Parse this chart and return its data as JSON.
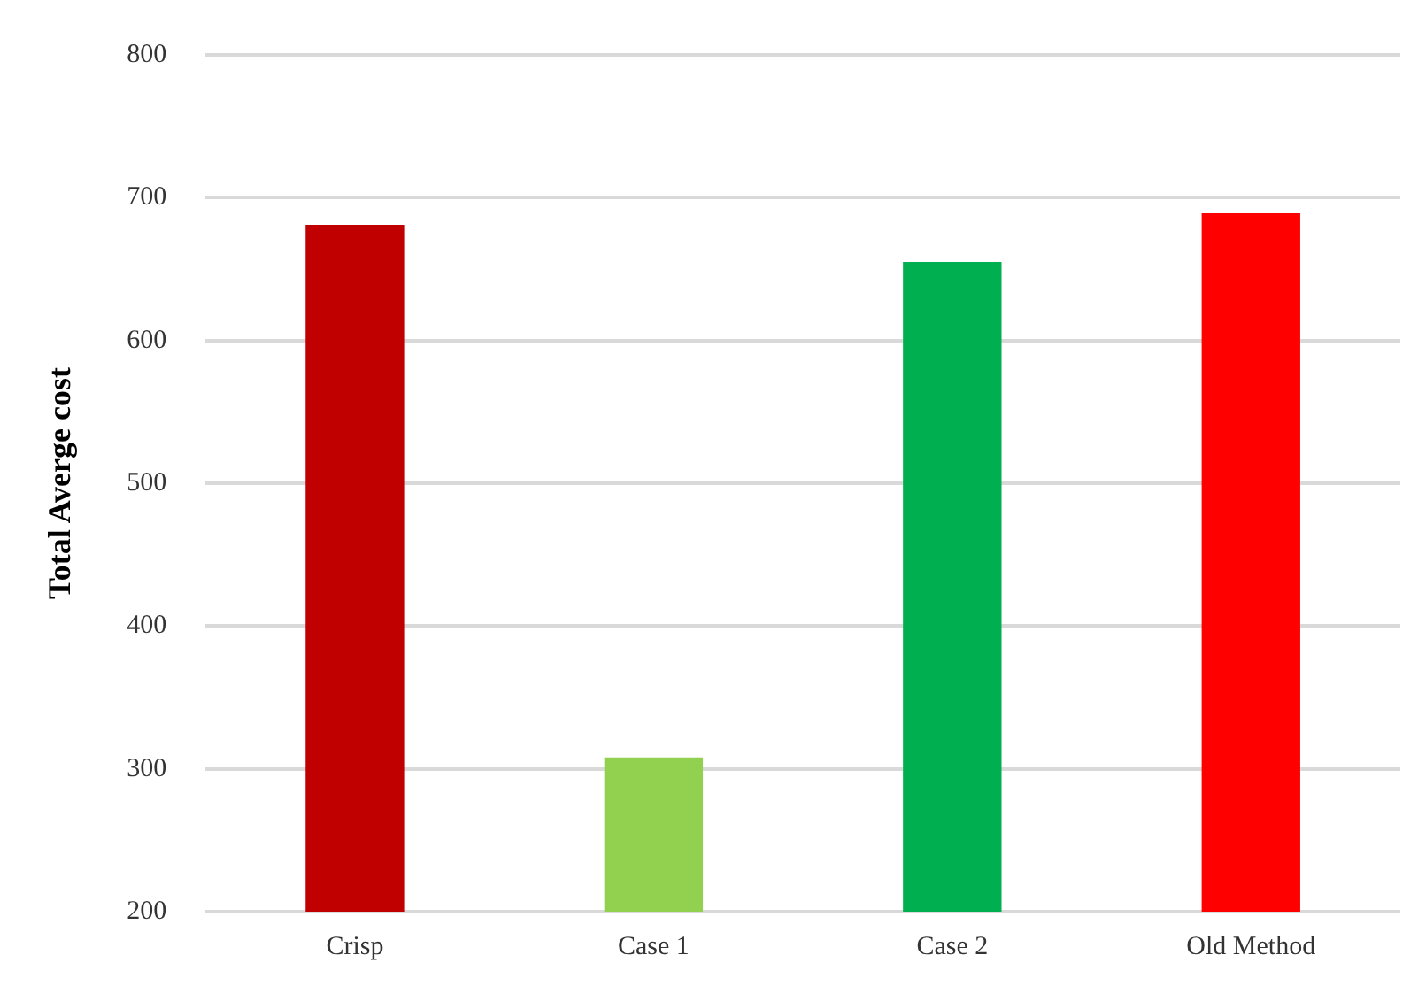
{
  "chart_data": {
    "type": "bar",
    "ylabel": "Total Averge cost",
    "categories": [
      "Crisp",
      "Case 1",
      "Case 2",
      "Old Method"
    ],
    "values": [
      681,
      308,
      655,
      689
    ],
    "colors": [
      "#c00000",
      "#92d050",
      "#00b050",
      "#ff0000"
    ],
    "ylim": [
      200,
      800
    ],
    "yticks": [
      200,
      300,
      400,
      500,
      600,
      700,
      800
    ],
    "grid": "y",
    "legend": false
  }
}
